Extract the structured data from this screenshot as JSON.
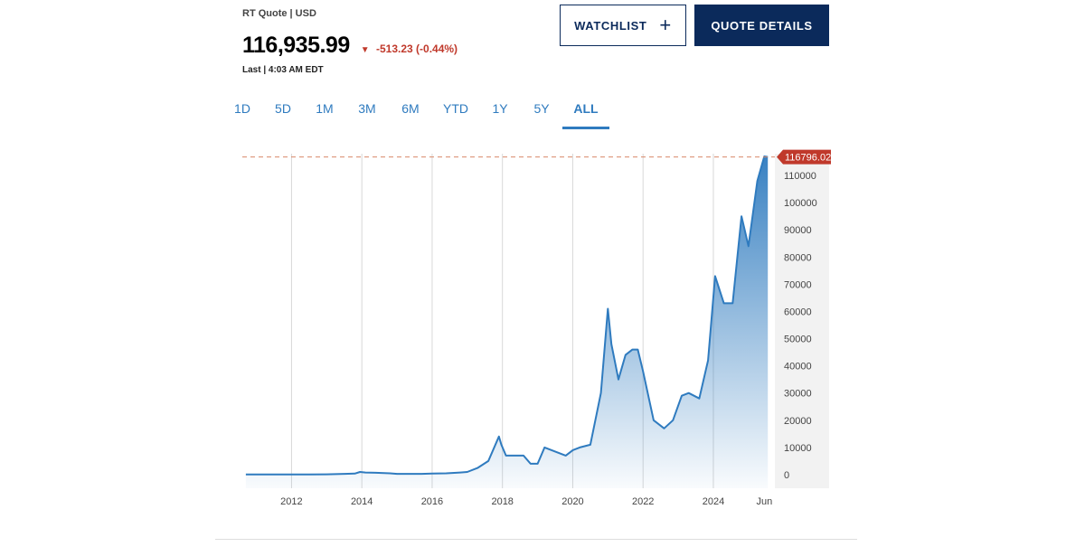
{
  "header": {
    "quote_meta": "RT Quote | USD",
    "price": "116,935.99",
    "change": "-513.23 (-0.44%)",
    "change_icon": "down-triangle-icon",
    "change_color": "#c0392b",
    "last_time": "Last | 4:03 AM EDT"
  },
  "actions": {
    "watchlist_label": "WATCHLIST",
    "watchlist_icon": "plus-icon",
    "quote_details_label": "QUOTE DETAILS",
    "brand_color": "#0b2a5b"
  },
  "tabs": [
    {
      "label": "1D",
      "active": false
    },
    {
      "label": "5D",
      "active": false
    },
    {
      "label": "1M",
      "active": false
    },
    {
      "label": "3M",
      "active": false
    },
    {
      "label": "6M",
      "active": false
    },
    {
      "label": "YTD",
      "active": false
    },
    {
      "label": "1Y",
      "active": false
    },
    {
      "label": "5Y",
      "active": false
    },
    {
      "label": "ALL",
      "active": true
    }
  ],
  "chart_data": {
    "type": "area",
    "title": "",
    "xlabel": "",
    "ylabel": "",
    "x_tick_labels": [
      "2012",
      "2014",
      "2016",
      "2018",
      "2020",
      "2022",
      "2024",
      "Jun"
    ],
    "y_ticks": [
      0,
      10000,
      20000,
      30000,
      40000,
      50000,
      60000,
      70000,
      80000,
      90000,
      100000,
      110000
    ],
    "ylim": [
      -5000,
      118000
    ],
    "xlim": [
      2010.6,
      2025.75
    ],
    "grid": "vertical",
    "line_color": "#2f7bbf",
    "last_value_label": "116796.02",
    "last_value": 116796.02,
    "last_value_color": "#c0392b",
    "series": [
      {
        "x": [
          2010.7,
          2011.0,
          2011.5,
          2012.0,
          2012.5,
          2013.0,
          2013.5,
          2013.8,
          2013.95,
          2014.1,
          2014.4,
          2014.8,
          2015.0,
          2015.3,
          2015.7,
          2016.0,
          2016.4,
          2016.8,
          2017.0,
          2017.3,
          2017.6,
          2017.9,
          2017.97,
          2018.1,
          2018.3,
          2018.6,
          2018.8,
          2019.0,
          2019.2,
          2019.4,
          2019.6,
          2019.8,
          2020.0,
          2020.2,
          2020.5,
          2020.8,
          2021.0,
          2021.1,
          2021.3,
          2021.5,
          2021.7,
          2021.85,
          2022.0,
          2022.3,
          2022.6,
          2022.85,
          2023.1,
          2023.3,
          2023.6,
          2023.85,
          2024.05,
          2024.3,
          2024.55,
          2024.8,
          2025.0,
          2025.25,
          2025.45,
          2025.55
        ],
        "y": [
          100,
          90,
          80,
          100,
          100,
          120,
          300,
          400,
          1000,
          800,
          700,
          500,
          300,
          300,
          300,
          400,
          500,
          800,
          1000,
          2500,
          5000,
          14000,
          11000,
          7000,
          7000,
          7000,
          4000,
          4000,
          10000,
          9000,
          8000,
          7000,
          9000,
          10000,
          11000,
          30000,
          61000,
          48000,
          35000,
          44000,
          46000,
          46000,
          38000,
          20000,
          17000,
          20000,
          29000,
          30000,
          28000,
          42000,
          73000,
          63000,
          63000,
          95000,
          84000,
          108000,
          117000,
          116796
        ]
      }
    ]
  }
}
